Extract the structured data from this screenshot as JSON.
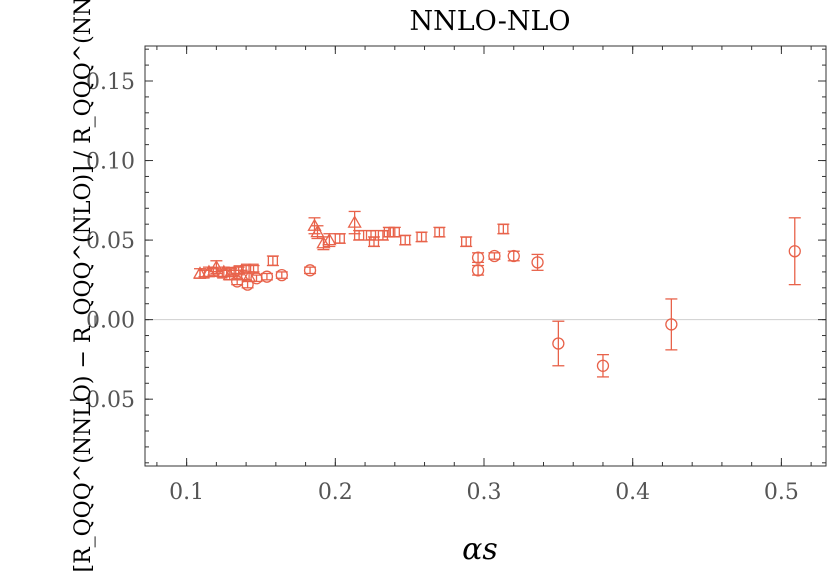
{
  "chart_data": {
    "type": "scatter",
    "title": "NNLO-NLO",
    "xlabel": "αs",
    "ylabel": "[R_QQQ^(NNLO) − R_QQQ^(NLO)] / R_QQQ^(NNLO)",
    "xlim": [
      0.072,
      0.53
    ],
    "ylim": [
      -0.092,
      0.172
    ],
    "xticks": [
      0.1,
      0.2,
      0.3,
      0.4,
      0.5
    ],
    "xtick_labels": [
      "0.1",
      "0.2",
      "0.3",
      "0.4",
      "0.5"
    ],
    "yticks": [
      -0.05,
      0.0,
      0.05,
      0.1,
      0.15
    ],
    "ytick_labels": [
      "−0.05",
      "0.00",
      "0.05",
      "0.10",
      "0.15"
    ],
    "reference_line_y": 0.0,
    "grid": false,
    "series": [
      {
        "marker": "circle",
        "color": "#e8624a",
        "points": [
          {
            "x": 0.134,
            "y": 0.024,
            "err": 0.002
          },
          {
            "x": 0.141,
            "y": 0.022,
            "err": 0.002
          },
          {
            "x": 0.147,
            "y": 0.026,
            "err": 0.002
          },
          {
            "x": 0.154,
            "y": 0.027,
            "err": 0.002
          },
          {
            "x": 0.164,
            "y": 0.028,
            "err": 0.002
          },
          {
            "x": 0.183,
            "y": 0.031,
            "err": 0.002
          },
          {
            "x": 0.296,
            "y": 0.031,
            "err": 0.003
          },
          {
            "x": 0.296,
            "y": 0.039,
            "err": 0.003
          },
          {
            "x": 0.307,
            "y": 0.04,
            "err": 0.002
          },
          {
            "x": 0.32,
            "y": 0.04,
            "err": 0.003
          },
          {
            "x": 0.336,
            "y": 0.036,
            "err": 0.005
          },
          {
            "x": 0.35,
            "y": -0.015,
            "err": 0.014
          },
          {
            "x": 0.38,
            "y": -0.029,
            "err": 0.007
          },
          {
            "x": 0.426,
            "y": -0.003,
            "err": 0.016
          },
          {
            "x": 0.509,
            "y": 0.043,
            "err": 0.021
          }
        ]
      },
      {
        "marker": "square",
        "color": "#e8624a",
        "points": [
          {
            "x": 0.112,
            "y": 0.029,
            "err": 0.002
          },
          {
            "x": 0.118,
            "y": 0.03,
            "err": 0.002
          },
          {
            "x": 0.124,
            "y": 0.029,
            "err": 0.002
          },
          {
            "x": 0.13,
            "y": 0.03,
            "err": 0.002
          },
          {
            "x": 0.135,
            "y": 0.031,
            "err": 0.002
          },
          {
            "x": 0.14,
            "y": 0.032,
            "err": 0.002
          },
          {
            "x": 0.145,
            "y": 0.032,
            "err": 0.002
          },
          {
            "x": 0.158,
            "y": 0.037,
            "err": 0.003
          },
          {
            "x": 0.203,
            "y": 0.051,
            "err": 0.003
          },
          {
            "x": 0.216,
            "y": 0.053,
            "err": 0.003
          },
          {
            "x": 0.224,
            "y": 0.053,
            "err": 0.003
          },
          {
            "x": 0.226,
            "y": 0.049,
            "err": 0.003
          },
          {
            "x": 0.232,
            "y": 0.053,
            "err": 0.003
          },
          {
            "x": 0.236,
            "y": 0.055,
            "err": 0.003
          },
          {
            "x": 0.24,
            "y": 0.055,
            "err": 0.003
          },
          {
            "x": 0.247,
            "y": 0.05,
            "err": 0.003
          },
          {
            "x": 0.258,
            "y": 0.052,
            "err": 0.003
          },
          {
            "x": 0.27,
            "y": 0.055,
            "err": 0.003
          },
          {
            "x": 0.288,
            "y": 0.049,
            "err": 0.003
          },
          {
            "x": 0.313,
            "y": 0.057,
            "err": 0.003
          }
        ]
      },
      {
        "marker": "triangle",
        "color": "#e8624a",
        "points": [
          {
            "x": 0.109,
            "y": 0.029,
            "err": 0.003
          },
          {
            "x": 0.115,
            "y": 0.03,
            "err": 0.003
          },
          {
            "x": 0.12,
            "y": 0.033,
            "err": 0.004
          },
          {
            "x": 0.125,
            "y": 0.03,
            "err": 0.003
          },
          {
            "x": 0.129,
            "y": 0.028,
            "err": 0.003
          },
          {
            "x": 0.137,
            "y": 0.028,
            "err": 0.003
          },
          {
            "x": 0.142,
            "y": 0.027,
            "err": 0.003
          },
          {
            "x": 0.186,
            "y": 0.059,
            "err": 0.005
          },
          {
            "x": 0.188,
            "y": 0.055,
            "err": 0.004
          },
          {
            "x": 0.192,
            "y": 0.048,
            "err": 0.004
          },
          {
            "x": 0.196,
            "y": 0.05,
            "err": 0.004
          },
          {
            "x": 0.213,
            "y": 0.061,
            "err": 0.007
          }
        ]
      }
    ]
  }
}
